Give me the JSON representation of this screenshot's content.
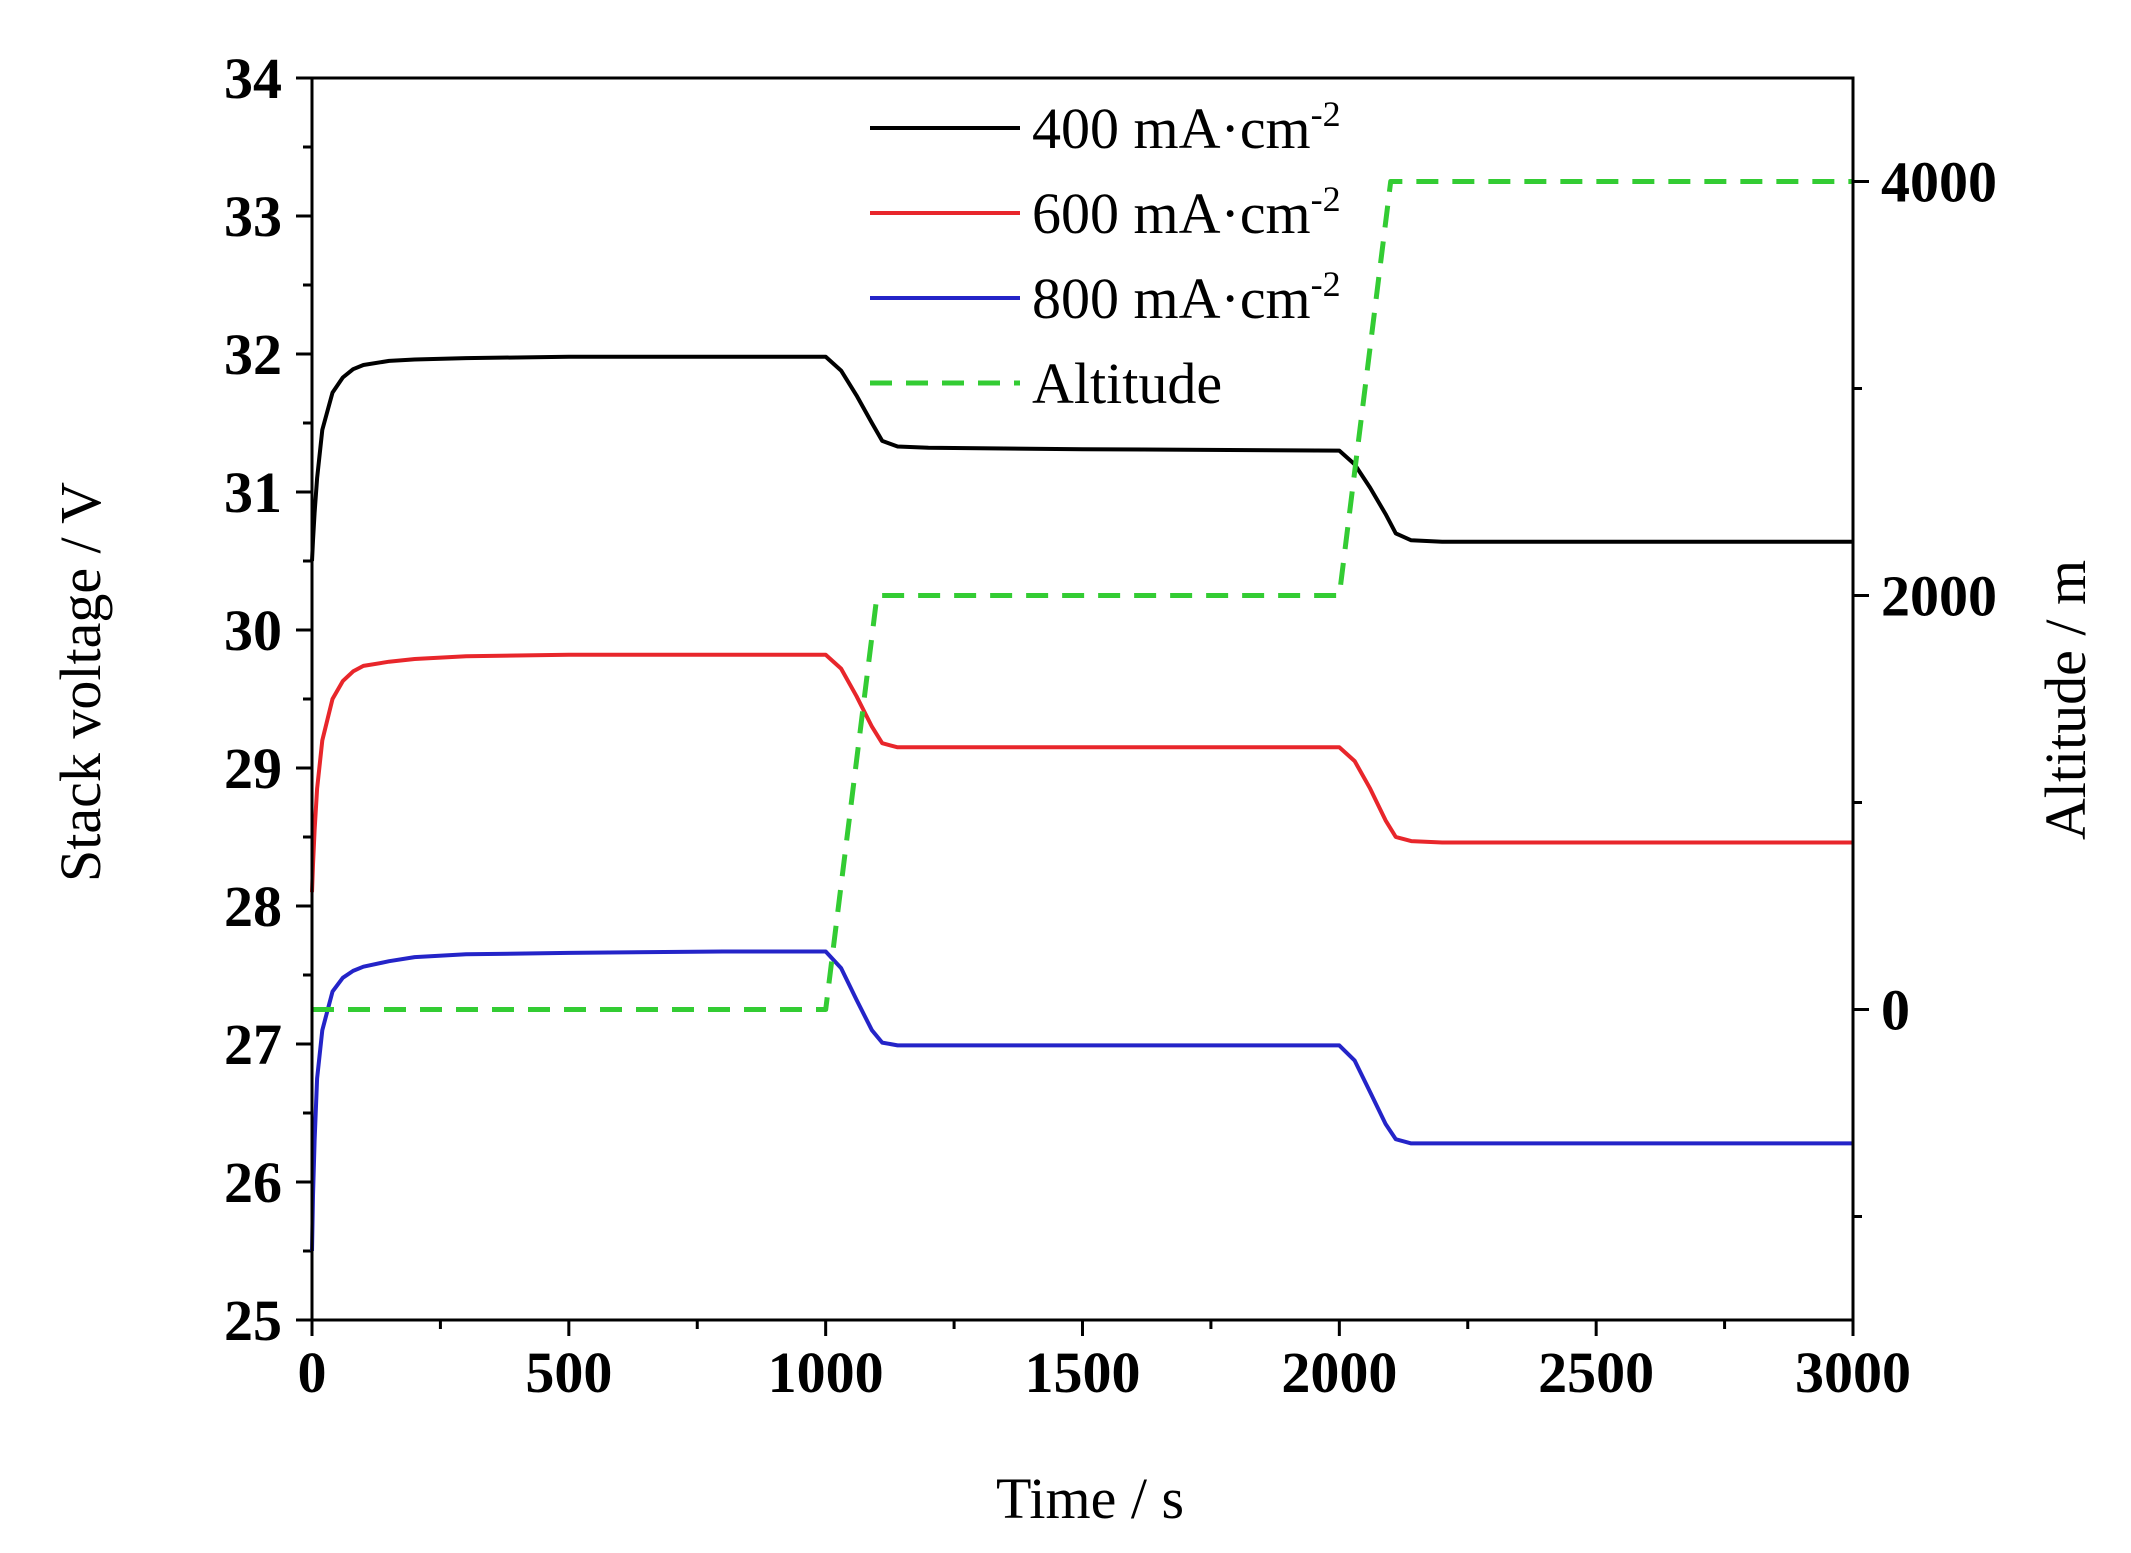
{
  "chart_data": {
    "type": "line",
    "x_axis": {
      "label": "Time / s",
      "min": 0,
      "max": 3000,
      "ticks": [
        0,
        500,
        1000,
        1500,
        2000,
        2500,
        3000
      ]
    },
    "y_axis_left": {
      "label": "Stack voltage / V",
      "min": 25,
      "max": 34,
      "ticks": [
        25,
        26,
        27,
        28,
        29,
        30,
        31,
        32,
        33,
        34
      ]
    },
    "y_axis_right": {
      "label": "Altitude / m",
      "min": -1500,
      "max": 4500,
      "ticks": [
        0,
        2000,
        4000
      ]
    },
    "legend_position": "top-center",
    "series": [
      {
        "name": "400 mA·cm-2",
        "name_main": "400 mA·cm",
        "name_sup": "-2",
        "axis": "left",
        "color": "#000000",
        "dash": "solid",
        "x": [
          0,
          2,
          5,
          10,
          20,
          40,
          60,
          80,
          100,
          150,
          200,
          300,
          500,
          800,
          1000,
          1030,
          1060,
          1090,
          1110,
          1140,
          1200,
          1500,
          2000,
          2030,
          2060,
          2090,
          2110,
          2140,
          2200,
          2500,
          3000
        ],
        "y": [
          30.5,
          30.65,
          30.85,
          31.1,
          31.45,
          31.72,
          31.83,
          31.89,
          31.92,
          31.95,
          31.96,
          31.97,
          31.98,
          31.98,
          31.98,
          31.88,
          31.7,
          31.5,
          31.37,
          31.33,
          31.32,
          31.31,
          31.3,
          31.2,
          31.03,
          30.84,
          30.7,
          30.65,
          30.64,
          30.64,
          30.64
        ]
      },
      {
        "name": "600 mA·cm-2",
        "name_main": "600 mA·cm",
        "name_sup": "-2",
        "axis": "left",
        "color": "#e8262b",
        "dash": "solid",
        "x": [
          0,
          2,
          5,
          10,
          20,
          40,
          60,
          80,
          100,
          150,
          200,
          300,
          500,
          800,
          1000,
          1030,
          1060,
          1090,
          1110,
          1140,
          1200,
          1500,
          2000,
          2030,
          2060,
          2090,
          2110,
          2140,
          2200,
          2500,
          3000
        ],
        "y": [
          28.1,
          28.3,
          28.55,
          28.85,
          29.2,
          29.5,
          29.63,
          29.7,
          29.74,
          29.77,
          29.79,
          29.81,
          29.82,
          29.82,
          29.82,
          29.72,
          29.52,
          29.3,
          29.18,
          29.15,
          29.15,
          29.15,
          29.15,
          29.05,
          28.85,
          28.62,
          28.5,
          28.47,
          28.46,
          28.46,
          28.46
        ]
      },
      {
        "name": "800 mA·cm-2",
        "name_main": "800 mA·cm",
        "name_sup": "-2",
        "axis": "left",
        "color": "#2424c8",
        "dash": "solid",
        "x": [
          0,
          2,
          5,
          10,
          20,
          40,
          60,
          80,
          100,
          150,
          200,
          300,
          500,
          800,
          1000,
          1030,
          1060,
          1090,
          1110,
          1140,
          1200,
          1500,
          2000,
          2030,
          2060,
          2090,
          2110,
          2140,
          2200,
          2500,
          3000
        ],
        "y": [
          25.5,
          25.9,
          26.3,
          26.75,
          27.1,
          27.38,
          27.48,
          27.53,
          27.56,
          27.6,
          27.63,
          27.65,
          27.66,
          27.67,
          27.67,
          27.55,
          27.32,
          27.1,
          27.01,
          26.99,
          26.99,
          26.99,
          26.99,
          26.88,
          26.65,
          26.42,
          26.31,
          26.28,
          26.28,
          26.28,
          26.28
        ]
      },
      {
        "name": "Altitude",
        "name_main": "Altitude",
        "name_sup": "",
        "axis": "right",
        "color": "#33cc33",
        "dash": "dashed",
        "x": [
          0,
          1000,
          1100,
          2000,
          2100,
          3000
        ],
        "y": [
          0,
          0,
          2000,
          2000,
          4000,
          4000
        ]
      }
    ]
  }
}
